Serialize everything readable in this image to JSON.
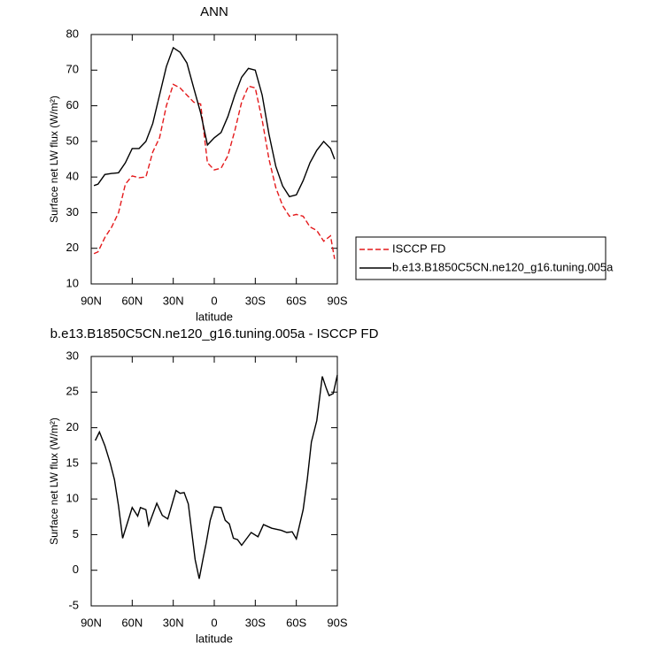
{
  "chart_data": [
    {
      "type": "line",
      "title": "ANN",
      "x_label": "latitude",
      "y_label": "Surface net LW flux (W/m²)",
      "x": [
        88,
        85,
        80,
        75,
        70,
        65,
        60,
        55,
        50,
        45,
        40,
        35,
        30,
        25,
        20,
        15,
        10,
        5,
        0,
        -5,
        -10,
        -15,
        -20,
        -25,
        -30,
        -35,
        -40,
        -45,
        -50,
        -55,
        -60,
        -65,
        -70,
        -75,
        -80,
        -85,
        -88
      ],
      "series": [
        {
          "name": "ISCCP FD",
          "color": "#e41a1c",
          "line_style": "dashed",
          "values": [
            18.5,
            19,
            23,
            26,
            30,
            38,
            40.3,
            39.8,
            40,
            47,
            51,
            60,
            66,
            65,
            63,
            61,
            60.5,
            44,
            42,
            42.5,
            46,
            53,
            61,
            65.5,
            65,
            56,
            45,
            37,
            32,
            29,
            29.5,
            29,
            26,
            25,
            22,
            23.5,
            17
          ]
        },
        {
          "name": "b.e13.B1850C5CN.ne120_g16.tuning.005a",
          "color": "#000000",
          "line_style": "solid",
          "values": [
            37.6,
            38,
            40.7,
            41,
            41.2,
            44,
            48,
            48,
            50,
            55,
            63,
            71,
            76.3,
            75,
            72,
            65,
            58,
            49,
            51,
            52.5,
            57,
            63,
            68,
            70.5,
            70,
            63,
            52,
            43,
            37.5,
            34.5,
            35,
            39,
            44,
            47.5,
            50,
            48,
            45
          ]
        }
      ],
      "xlim": [
        90,
        -90
      ],
      "xticks": [
        {
          "value": 90,
          "label": "90N"
        },
        {
          "value": 60,
          "label": "60N"
        },
        {
          "value": 30,
          "label": "30N"
        },
        0,
        {
          "value": -30,
          "label": "30S"
        },
        {
          "value": -60,
          "label": "60S"
        },
        {
          "value": -90,
          "label": "90S"
        }
      ],
      "ylim": [
        10,
        80
      ],
      "yticks": [
        10,
        20,
        30,
        40,
        50,
        60,
        70,
        80
      ],
      "legend": "outside right"
    },
    {
      "type": "line",
      "title": "b.e13.B1850C5CN.ne120_g16.tuning.005a - ISCCP FD",
      "x_label": "latitude",
      "y_label": "Surface net LW flux (W/m²)",
      "x": [
        87,
        84,
        80,
        76,
        73,
        70,
        67,
        60,
        56,
        54,
        50,
        48,
        42,
        38,
        34,
        28,
        25,
        22,
        19,
        14,
        11,
        8,
        6,
        3,
        0,
        -5,
        -8,
        -11,
        -14,
        -17,
        -20,
        -27,
        -32,
        -36,
        -42,
        -49,
        -53,
        -57,
        -60,
        -65,
        -68,
        -71,
        -75,
        -79,
        -82,
        -84,
        -87,
        -90
      ],
      "series": [
        {
          "color": "#000000",
          "line_style": "solid",
          "values": [
            18.2,
            19.4,
            17.5,
            15,
            12.7,
            9,
            4.5,
            8.8,
            7.6,
            8.8,
            8.5,
            6.3,
            9.4,
            7.7,
            7.2,
            11.2,
            10.8,
            10.9,
            9.3,
            1.5,
            -1.2,
            1.8,
            3.7,
            7,
            8.9,
            8.8,
            7,
            6.5,
            4.5,
            4.3,
            3.5,
            5.3,
            4.7,
            6.4,
            5.9,
            5.6,
            5.3,
            5.4,
            4.4,
            8.5,
            12.7,
            18,
            21,
            27.2,
            25.5,
            24.5,
            24.8,
            27.4
          ]
        }
      ],
      "xlim": [
        90,
        -90
      ],
      "xticks": [
        {
          "value": 90,
          "label": "90N"
        },
        {
          "value": 60,
          "label": "60N"
        },
        {
          "value": 30,
          "label": "30N"
        },
        0,
        {
          "value": -30,
          "label": "30S"
        },
        {
          "value": -60,
          "label": "60S"
        },
        {
          "value": -90,
          "label": "90S"
        }
      ],
      "ylim": [
        -5,
        30
      ],
      "yticks": [
        -5,
        0,
        5,
        10,
        15,
        20,
        25,
        30
      ]
    }
  ]
}
